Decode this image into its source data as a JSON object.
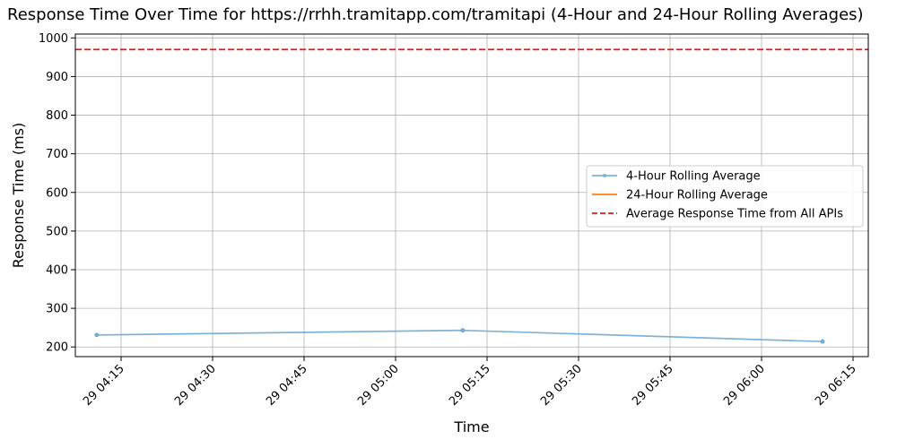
{
  "chart_data": {
    "type": "line",
    "title": "Response Time Over Time for https://rrhh.tramitapp.com/tramitapi (4-Hour and 24-Hour Rolling Averages)",
    "xlabel": "Time",
    "ylabel": "Response Time (ms)",
    "xlim": [
      "29 04:07:30",
      "29 06:17:30"
    ],
    "ylim": [
      175,
      1010
    ],
    "x_ticks": [
      "29 04:15",
      "29 04:30",
      "29 04:45",
      "29 05:00",
      "29 05:15",
      "29 05:30",
      "29 05:45",
      "29 06:00",
      "29 06:15"
    ],
    "y_ticks": [
      200,
      300,
      400,
      500,
      600,
      700,
      800,
      900,
      1000
    ],
    "grid": true,
    "legend_position": "center-right",
    "series": [
      {
        "name": "4-Hour Rolling Average",
        "color": "#7fb3d5",
        "style": "solid",
        "marker": "dot",
        "points": [
          {
            "x": "29 04:11",
            "y": 231
          },
          {
            "x": "29 05:11",
            "y": 243
          },
          {
            "x": "29 06:10",
            "y": 214
          }
        ]
      },
      {
        "name": "24-Hour Rolling Average",
        "color": "#ff7f0e",
        "style": "solid",
        "points": []
      },
      {
        "name": "Average Response Time from All APIs",
        "color": "#e41a1c",
        "style": "dashed",
        "constant": 970
      }
    ]
  }
}
